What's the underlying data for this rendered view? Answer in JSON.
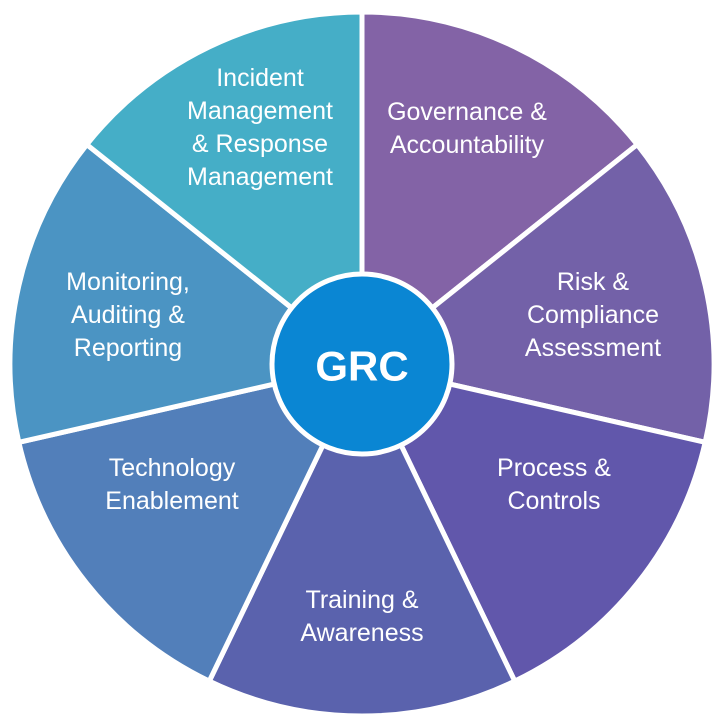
{
  "center": {
    "label": "GRC",
    "color": "#0A86D3"
  },
  "segments": [
    {
      "key": "governance",
      "lines": [
        "Governance &",
        "Accountability"
      ],
      "color": "#8363A6"
    },
    {
      "key": "risk",
      "lines": [
        "Risk &",
        "Compliance",
        "Assessment"
      ],
      "color": "#7361A8"
    },
    {
      "key": "process",
      "lines": [
        "Process &",
        "Controls"
      ],
      "color": "#6157AB"
    },
    {
      "key": "training",
      "lines": [
        "Training &",
        "Awareness"
      ],
      "color": "#5A62AD"
    },
    {
      "key": "technology",
      "lines": [
        "Technology",
        "Enablement"
      ],
      "color": "#527FBA"
    },
    {
      "key": "monitoring",
      "lines": [
        "Monitoring,",
        "Auditing &",
        "Reporting"
      ],
      "color": "#4B94C3"
    },
    {
      "key": "incident",
      "lines": [
        "Incident",
        "Management",
        "& Response",
        "Management"
      ],
      "color": "#45AEC7"
    }
  ]
}
